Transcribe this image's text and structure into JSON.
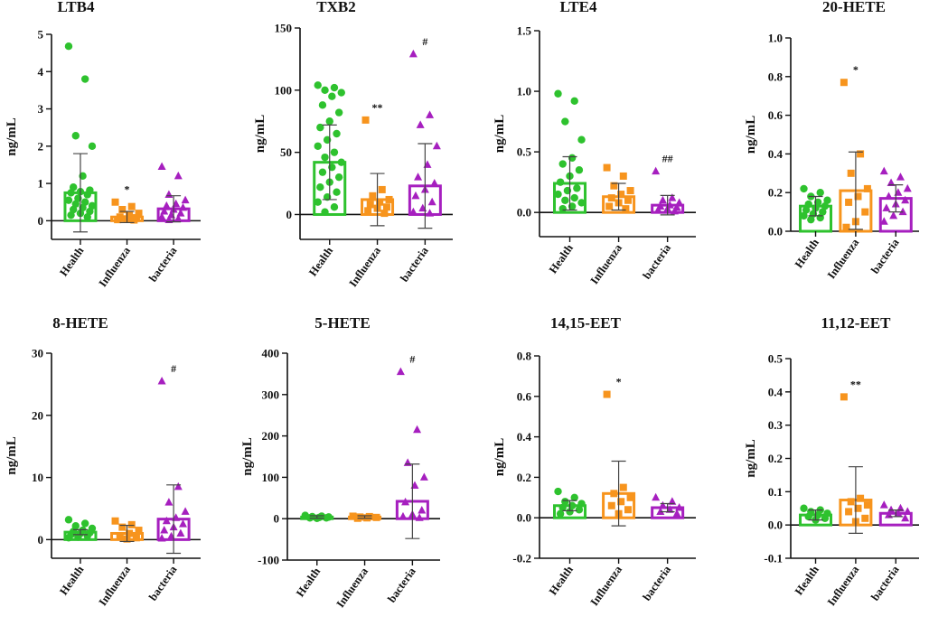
{
  "figure_type": "multi-panel bar chart with scatter points and error bars",
  "colors": {
    "Health": "#2ec22e",
    "Influenza": "#f7941d",
    "bacteria": "#a61fbf",
    "axis": "#111111"
  },
  "chart_data": [
    {
      "type": "bar",
      "title": "LTB4",
      "ylabel": "ng/mL",
      "categories": [
        "Health",
        "Influenza",
        "bacteria"
      ],
      "ylim": [
        -0.5,
        5
      ],
      "yticks": [
        0,
        1,
        2,
        3,
        4,
        5
      ],
      "tick_labels": [
        "0",
        "1",
        "2",
        "3",
        "4",
        "5"
      ],
      "means": [
        0.75,
        0.1,
        0.32
      ],
      "sd": [
        1.05,
        0.15,
        0.35
      ],
      "annotations": [
        "",
        "*",
        ""
      ],
      "points": [
        [
          4.68,
          3.8,
          2.28,
          2.0,
          1.2,
          0.9,
          0.82,
          0.78,
          0.75,
          0.7,
          0.6,
          0.55,
          0.5,
          0.45,
          0.4,
          0.35,
          0.3,
          0.25,
          0.2,
          0.15,
          0.1
        ],
        [
          0.5,
          0.38,
          0.3,
          0.2,
          0.15,
          0.1,
          0.08,
          0.05,
          0.03,
          0.02
        ],
        [
          1.45,
          1.2,
          0.7,
          0.55,
          0.45,
          0.4,
          0.35,
          0.3,
          0.25,
          0.2,
          0.15,
          0.1,
          0.05,
          0.02
        ]
      ]
    },
    {
      "type": "bar",
      "title": "TXB2",
      "ylabel": "ng/mL",
      "categories": [
        "Health",
        "Influenza",
        "bacteria"
      ],
      "ylim": [
        -20,
        150
      ],
      "yticks": [
        0,
        50,
        100,
        150
      ],
      "tick_labels": [
        "0",
        "50",
        "100",
        "150"
      ],
      "means": [
        42,
        12,
        23
      ],
      "sd": [
        30,
        21,
        34
      ],
      "annotations": [
        "",
        "**",
        "#"
      ],
      "points": [
        [
          104,
          102,
          100,
          98,
          95,
          88,
          82,
          75,
          70,
          65,
          60,
          55,
          50,
          46,
          42,
          38,
          34,
          30,
          26,
          22,
          18,
          14,
          10,
          6,
          2
        ],
        [
          76,
          20,
          15,
          12,
          10,
          8,
          6,
          5,
          3,
          1
        ],
        [
          129,
          80,
          72,
          55,
          40,
          30,
          25,
          20,
          15,
          10,
          5,
          2,
          1
        ]
      ]
    },
    {
      "type": "bar",
      "title": "LTE4",
      "ylabel": "ng/mL",
      "categories": [
        "Health",
        "Influenza",
        "bacteria"
      ],
      "ylim": [
        -0.2,
        1.5
      ],
      "yticks": [
        0.0,
        0.5,
        1.0,
        1.5
      ],
      "tick_labels": [
        "0.0",
        "0.5",
        "1.0",
        "1.5"
      ],
      "means": [
        0.24,
        0.13,
        0.06
      ],
      "sd": [
        0.22,
        0.11,
        0.08
      ],
      "annotations": [
        "",
        "",
        "##"
      ],
      "points": [
        [
          0.98,
          0.92,
          0.75,
          0.6,
          0.45,
          0.4,
          0.35,
          0.3,
          0.25,
          0.2,
          0.18,
          0.15,
          0.12,
          0.1,
          0.08,
          0.05,
          0.03
        ],
        [
          0.37,
          0.3,
          0.22,
          0.18,
          0.15,
          0.12,
          0.1,
          0.08,
          0.05,
          0.03
        ],
        [
          0.34,
          0.12,
          0.1,
          0.08,
          0.06,
          0.05,
          0.04,
          0.03,
          0.02,
          0.01
        ]
      ]
    },
    {
      "type": "bar",
      "title": "20-HETE",
      "ylabel": "ng/mL",
      "categories": [
        "Health",
        "Influenza",
        "bacteria"
      ],
      "ylim": [
        0,
        1.0
      ],
      "yticks": [
        0.0,
        0.2,
        0.4,
        0.6,
        0.8,
        1.0
      ],
      "tick_labels": [
        "0.0",
        "0.2",
        "0.4",
        "0.6",
        "0.8",
        "1.0"
      ],
      "means": [
        0.13,
        0.21,
        0.17
      ],
      "sd": [
        0.05,
        0.2,
        0.07
      ],
      "annotations": [
        "",
        "*",
        ""
      ],
      "points": [
        [
          0.22,
          0.2,
          0.18,
          0.16,
          0.15,
          0.14,
          0.13,
          0.12,
          0.11,
          0.1,
          0.09,
          0.08,
          0.07,
          0.06
        ],
        [
          0.77,
          0.4,
          0.3,
          0.22,
          0.18,
          0.15,
          0.1,
          0.05,
          0.02
        ],
        [
          0.31,
          0.28,
          0.25,
          0.22,
          0.2,
          0.18,
          0.16,
          0.14,
          0.12,
          0.1,
          0.08,
          0.05
        ]
      ]
    },
    {
      "type": "bar",
      "title": "8-HETE",
      "ylabel": "ng/mL",
      "categories": [
        "Health",
        "Influenza",
        "bacteria"
      ],
      "ylim": [
        -3,
        30
      ],
      "yticks": [
        0,
        10,
        20,
        30
      ],
      "tick_labels": [
        "0",
        "10",
        "20",
        "30"
      ],
      "means": [
        1.2,
        1.0,
        3.3
      ],
      "sd": [
        0.4,
        1.3,
        5.5
      ],
      "annotations": [
        "",
        "",
        "#"
      ],
      "points": [
        [
          3.2,
          2.6,
          2.2,
          1.8,
          1.5,
          1.3,
          1.1,
          1.0,
          0.8,
          0.6,
          0.4,
          0.3
        ],
        [
          3.0,
          2.4,
          2.0,
          1.5,
          1.0,
          0.6,
          0.3,
          0.1
        ],
        [
          25.5,
          8.5,
          6.0,
          4.5,
          3.5,
          3.0,
          2.5,
          2.0,
          1.5,
          1.0,
          0.5,
          0.2
        ]
      ]
    },
    {
      "type": "bar",
      "title": "5-HETE",
      "ylabel": "ng/mL",
      "categories": [
        "Health",
        "Influenza",
        "bacteria"
      ],
      "ylim": [
        -100,
        400
      ],
      "yticks": [
        -100,
        0,
        100,
        200,
        300,
        400
      ],
      "tick_labels": [
        "-100",
        "0",
        "100",
        "200",
        "300",
        "400"
      ],
      "means": [
        4,
        4,
        42
      ],
      "sd": [
        3,
        3,
        90
      ],
      "annotations": [
        "",
        "",
        "#"
      ],
      "points": [
        [
          8,
          6,
          5,
          4,
          3,
          2,
          2,
          1
        ],
        [
          6,
          5,
          4,
          3,
          2,
          1
        ],
        [
          355,
          215,
          135,
          100,
          80,
          40,
          20,
          10,
          5,
          2
        ]
      ]
    },
    {
      "type": "bar",
      "title": "14,15-EET",
      "ylabel": "ng/mL",
      "categories": [
        "Health",
        "Influenza",
        "bacteria"
      ],
      "ylim": [
        -0.2,
        0.8
      ],
      "yticks": [
        -0.2,
        0.0,
        0.2,
        0.4,
        0.6,
        0.8
      ],
      "tick_labels": [
        "-0.2",
        "0.0",
        "0.2",
        "0.4",
        "0.6",
        "0.8"
      ],
      "means": [
        0.06,
        0.12,
        0.05
      ],
      "sd": [
        0.025,
        0.16,
        0.02
      ],
      "annotations": [
        "",
        "*",
        ""
      ],
      "points": [
        [
          0.13,
          0.1,
          0.08,
          0.07,
          0.06,
          0.05,
          0.04,
          0.03,
          0.02
        ],
        [
          0.61,
          0.15,
          0.12,
          0.1,
          0.08,
          0.06,
          0.04,
          0.02
        ],
        [
          0.1,
          0.08,
          0.06,
          0.05,
          0.04,
          0.03,
          0.02
        ]
      ]
    },
    {
      "type": "bar",
      "title": "11,12-EET",
      "ylabel": "ng/mL",
      "categories": [
        "Health",
        "Influenza",
        "bacteria"
      ],
      "ylim": [
        -0.1,
        0.5
      ],
      "yticks": [
        -0.1,
        0.0,
        0.1,
        0.2,
        0.3,
        0.4,
        0.5
      ],
      "tick_labels": [
        "-0.1",
        "0.0",
        "0.1",
        "0.2",
        "0.3",
        "0.4",
        "0.5"
      ],
      "means": [
        0.03,
        0.075,
        0.035
      ],
      "sd": [
        0.015,
        0.1,
        0.01
      ],
      "annotations": [
        "",
        "**",
        ""
      ],
      "points": [
        [
          0.05,
          0.045,
          0.04,
          0.035,
          0.03,
          0.025,
          0.02,
          0.015
        ],
        [
          0.385,
          0.08,
          0.07,
          0.06,
          0.05,
          0.04,
          0.02,
          0.01
        ],
        [
          0.06,
          0.05,
          0.045,
          0.04,
          0.035,
          0.03,
          0.02
        ]
      ]
    }
  ]
}
